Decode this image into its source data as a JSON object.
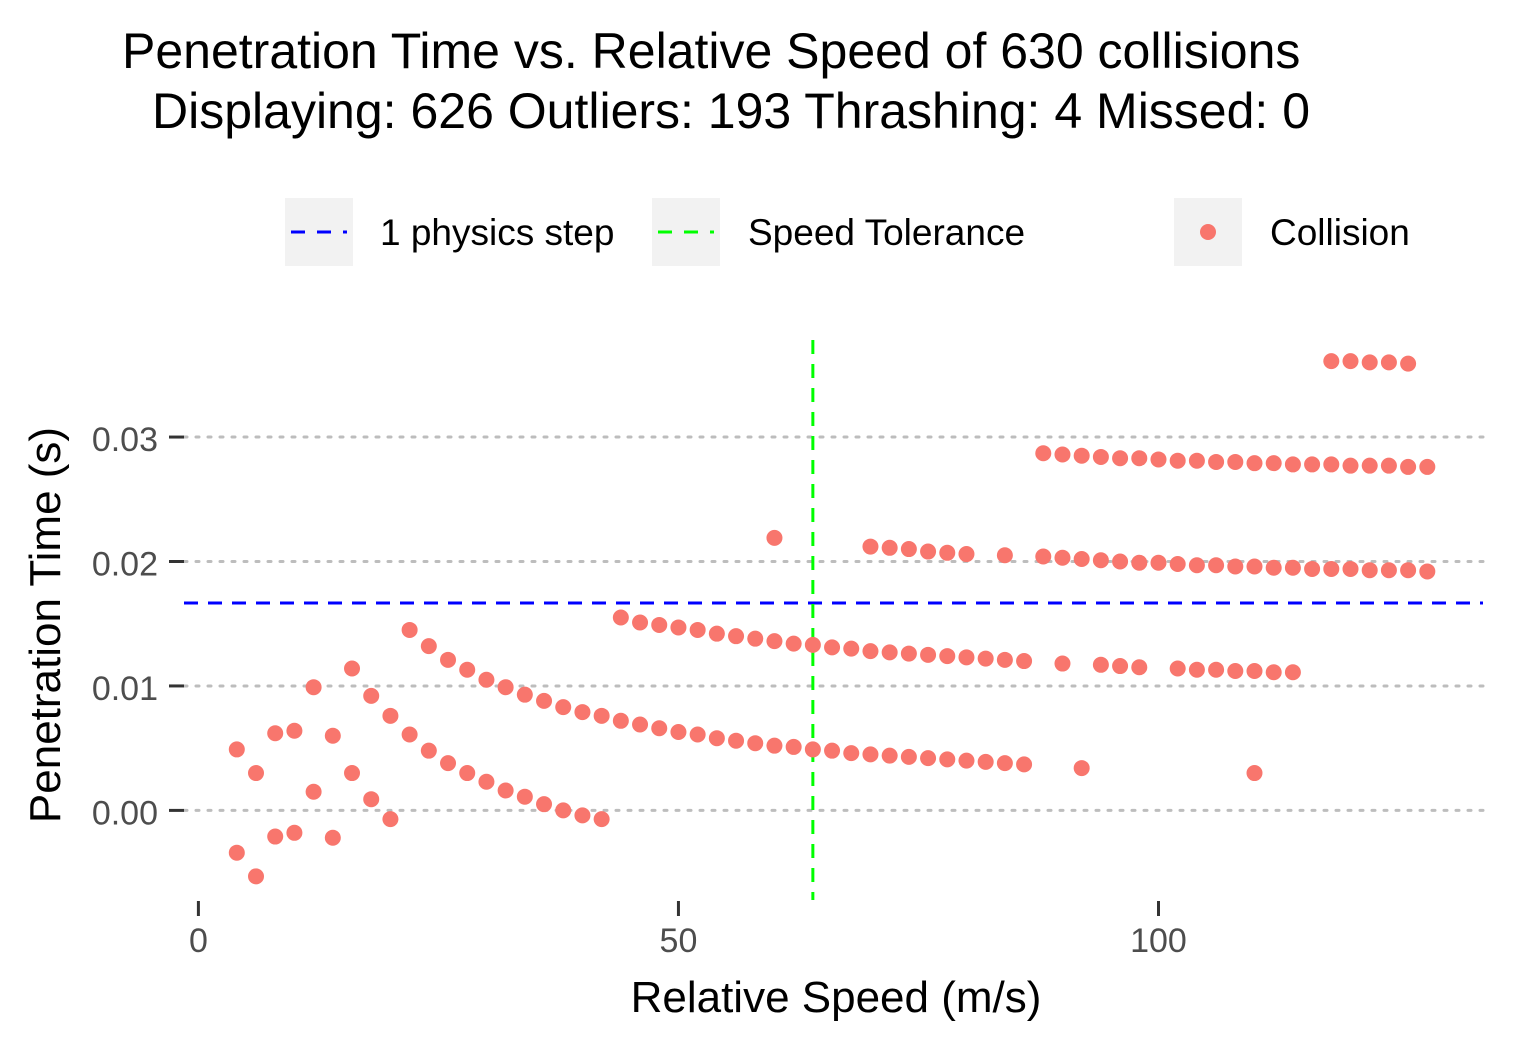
{
  "chart_data": {
    "type": "scatter",
    "title": "Penetration Time vs. Relative Speed of 630 collisions",
    "subtitle": "Displaying: 626 Outliers: 193 Thrashing: 4 Missed: 0",
    "xlabel": "Relative Speed (m/s)",
    "ylabel": "Penetration Time (s)",
    "xlim": [
      -1.5,
      133.8
    ],
    "ylim": [
      -0.0072,
      0.0382
    ],
    "x_ticks": [
      0,
      50,
      100
    ],
    "x_tick_labels": [
      "0",
      "50",
      "100"
    ],
    "y_ticks": [
      0.0,
      0.01,
      0.02,
      0.03
    ],
    "y_tick_labels": [
      "0.00",
      "0.01",
      "0.02",
      "0.03"
    ],
    "grid": "horizontal-dotted",
    "legend_position": "top",
    "legend": [
      {
        "key": "step",
        "label": "1 physics step",
        "type": "dashed-line",
        "color": "#0000ff"
      },
      {
        "key": "tol",
        "label": "Speed Tolerance",
        "type": "dashed-line",
        "color": "#00ff00"
      },
      {
        "key": "collision",
        "label": "Collision",
        "type": "point",
        "color": "#f8766d"
      }
    ],
    "reference_lines": {
      "physics_step_y": 0.01667,
      "speed_tolerance_x": 64.0
    },
    "series": [
      {
        "name": "Collision",
        "color": "#f8766d",
        "points": [
          [
            4.0,
            0.0049
          ],
          [
            6.0,
            0.003
          ],
          [
            8.0,
            0.0062
          ],
          [
            10.0,
            0.0064
          ],
          [
            12.0,
            0.0099
          ],
          [
            14.0,
            0.006
          ],
          [
            16.0,
            0.0114
          ],
          [
            18.0,
            0.0092
          ],
          [
            20.0,
            0.0076
          ],
          [
            22.0,
            0.0145
          ],
          [
            4.0,
            -0.0034
          ],
          [
            6.0,
            -0.0053
          ],
          [
            8.0,
            -0.0021
          ],
          [
            10.0,
            -0.0018
          ],
          [
            12.0,
            0.0015
          ],
          [
            14.0,
            -0.0022
          ],
          [
            16.0,
            0.003
          ],
          [
            18.0,
            0.0009
          ],
          [
            20.0,
            -0.0007
          ],
          [
            22.0,
            0.0061
          ],
          [
            24.0,
            0.0132
          ],
          [
            26.0,
            0.0121
          ],
          [
            28.0,
            0.0113
          ],
          [
            30.0,
            0.0105
          ],
          [
            32.0,
            0.0099
          ],
          [
            34.0,
            0.0093
          ],
          [
            36.0,
            0.0088
          ],
          [
            38.0,
            0.0083
          ],
          [
            40.0,
            0.0079
          ],
          [
            42.0,
            0.0076
          ],
          [
            24.0,
            0.0048
          ],
          [
            26.0,
            0.0038
          ],
          [
            28.0,
            0.003
          ],
          [
            30.0,
            0.0023
          ],
          [
            32.0,
            0.0016
          ],
          [
            34.0,
            0.0011
          ],
          [
            36.0,
            0.0005
          ],
          [
            38.0,
            0.0
          ],
          [
            40.0,
            -0.0004
          ],
          [
            42.0,
            -0.0007
          ],
          [
            44.0,
            0.0072
          ],
          [
            46.0,
            0.0069
          ],
          [
            48.0,
            0.0066
          ],
          [
            50.0,
            0.0063
          ],
          [
            52.0,
            0.0061
          ],
          [
            54.0,
            0.0058
          ],
          [
            56.0,
            0.0056
          ],
          [
            58.0,
            0.0054
          ],
          [
            60.0,
            0.0052
          ],
          [
            62.0,
            0.0051
          ],
          [
            64.0,
            0.0049
          ],
          [
            66.0,
            0.0048
          ],
          [
            68.0,
            0.0046
          ],
          [
            70.0,
            0.0045
          ],
          [
            72.0,
            0.0044
          ],
          [
            74.0,
            0.0043
          ],
          [
            76.0,
            0.0042
          ],
          [
            78.0,
            0.0041
          ],
          [
            80.0,
            0.004
          ],
          [
            82.0,
            0.0039
          ],
          [
            84.0,
            0.0038
          ],
          [
            86.0,
            0.0037
          ],
          [
            92.0,
            0.0034
          ],
          [
            110.0,
            0.003
          ],
          [
            44.0,
            0.0155
          ],
          [
            46.0,
            0.0151
          ],
          [
            48.0,
            0.0149
          ],
          [
            50.0,
            0.0147
          ],
          [
            52.0,
            0.0145
          ],
          [
            54.0,
            0.0142
          ],
          [
            56.0,
            0.014
          ],
          [
            58.0,
            0.0138
          ],
          [
            60.0,
            0.0136
          ],
          [
            62.0,
            0.0134
          ],
          [
            64.0,
            0.0133
          ],
          [
            66.0,
            0.0131
          ],
          [
            68.0,
            0.013
          ],
          [
            70.0,
            0.0128
          ],
          [
            72.0,
            0.0127
          ],
          [
            74.0,
            0.0126
          ],
          [
            76.0,
            0.0125
          ],
          [
            78.0,
            0.0124
          ],
          [
            80.0,
            0.0123
          ],
          [
            82.0,
            0.0122
          ],
          [
            84.0,
            0.0121
          ],
          [
            86.0,
            0.012
          ],
          [
            90.0,
            0.0118
          ],
          [
            94.0,
            0.0117
          ],
          [
            96.0,
            0.0116
          ],
          [
            98.0,
            0.0115
          ],
          [
            102.0,
            0.0114
          ],
          [
            104.0,
            0.0113
          ],
          [
            106.0,
            0.0113
          ],
          [
            108.0,
            0.0112
          ],
          [
            110.0,
            0.0112
          ],
          [
            112.0,
            0.0111
          ],
          [
            114.0,
            0.0111
          ],
          [
            60.0,
            0.0219
          ],
          [
            70.0,
            0.0212
          ],
          [
            72.0,
            0.0211
          ],
          [
            74.0,
            0.021
          ],
          [
            76.0,
            0.0208
          ],
          [
            78.0,
            0.0207
          ],
          [
            80.0,
            0.0206
          ],
          [
            84.0,
            0.0205
          ],
          [
            88.0,
            0.0204
          ],
          [
            90.0,
            0.0203
          ],
          [
            92.0,
            0.0202
          ],
          [
            94.0,
            0.0201
          ],
          [
            96.0,
            0.02
          ],
          [
            98.0,
            0.0199
          ],
          [
            100.0,
            0.0199
          ],
          [
            102.0,
            0.0198
          ],
          [
            104.0,
            0.0197
          ],
          [
            106.0,
            0.0197
          ],
          [
            108.0,
            0.0196
          ],
          [
            110.0,
            0.0196
          ],
          [
            112.0,
            0.0195
          ],
          [
            114.0,
            0.0195
          ],
          [
            116.0,
            0.0194
          ],
          [
            118.0,
            0.0194
          ],
          [
            120.0,
            0.0194
          ],
          [
            122.0,
            0.0193
          ],
          [
            124.0,
            0.0193
          ],
          [
            126.0,
            0.0193
          ],
          [
            128.0,
            0.0192
          ],
          [
            88.0,
            0.0287
          ],
          [
            90.0,
            0.0286
          ],
          [
            92.0,
            0.0285
          ],
          [
            94.0,
            0.0284
          ],
          [
            96.0,
            0.0283
          ],
          [
            98.0,
            0.0283
          ],
          [
            100.0,
            0.0282
          ],
          [
            102.0,
            0.0281
          ],
          [
            104.0,
            0.0281
          ],
          [
            106.0,
            0.028
          ],
          [
            108.0,
            0.028
          ],
          [
            110.0,
            0.0279
          ],
          [
            112.0,
            0.0279
          ],
          [
            114.0,
            0.0278
          ],
          [
            116.0,
            0.0278
          ],
          [
            118.0,
            0.0278
          ],
          [
            120.0,
            0.0277
          ],
          [
            122.0,
            0.0277
          ],
          [
            124.0,
            0.0277
          ],
          [
            126.0,
            0.0276
          ],
          [
            128.0,
            0.0276
          ],
          [
            118.0,
            0.0361
          ],
          [
            120.0,
            0.0361
          ],
          [
            122.0,
            0.036
          ],
          [
            124.0,
            0.036
          ],
          [
            126.0,
            0.0359
          ]
        ]
      }
    ]
  }
}
